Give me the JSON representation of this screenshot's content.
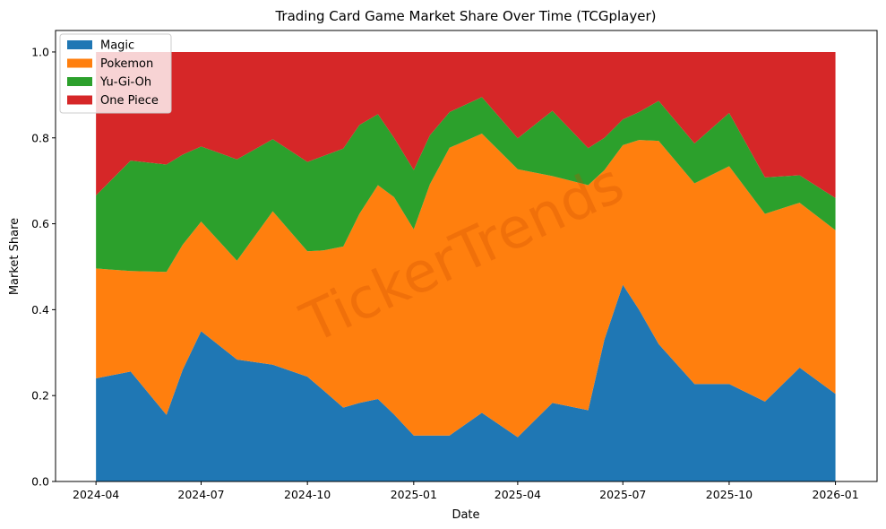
{
  "chart_data": {
    "type": "area",
    "stacked": true,
    "title": "Trading Card Game Market Share Over Time (TCGplayer)",
    "xlabel": "Date",
    "ylabel": "Market Share",
    "ylim": [
      0,
      1.05
    ],
    "xlim": [
      "2024-02-26",
      "2026-02-06"
    ],
    "yticks": [
      0.0,
      0.2,
      0.4,
      0.6,
      0.8,
      1.0
    ],
    "ytick_labels": [
      "0.0",
      "0.2",
      "0.4",
      "0.6",
      "0.8",
      "1.0"
    ],
    "xticks": [
      "2024-04-01",
      "2024-07-01",
      "2024-10-01",
      "2025-01-01",
      "2025-04-01",
      "2025-07-01",
      "2025-10-01",
      "2026-01-01"
    ],
    "xtick_labels": [
      "2024-04",
      "2024-07",
      "2024-10",
      "2025-01",
      "2025-04",
      "2025-07",
      "2025-10",
      "2026-01"
    ],
    "grid": false,
    "legend_position": "top-left",
    "watermark": "TickerTrends",
    "x": [
      "2024-04-01",
      "2024-05-01",
      "2024-06-01",
      "2024-06-15",
      "2024-07-01",
      "2024-08-01",
      "2024-09-01",
      "2024-10-01",
      "2024-10-15",
      "2024-11-01",
      "2024-11-15",
      "2024-12-01",
      "2024-12-15",
      "2025-01-01",
      "2025-01-15",
      "2025-02-01",
      "2025-03-01",
      "2025-04-01",
      "2025-05-01",
      "2025-06-01",
      "2025-06-15",
      "2025-07-01",
      "2025-07-15",
      "2025-08-01",
      "2025-09-01",
      "2025-10-01",
      "2025-11-01",
      "2025-12-01",
      "2026-01-01"
    ],
    "series": [
      {
        "name": "Magic",
        "color": "#1f77b4",
        "values": [
          0.24,
          0.256,
          0.155,
          0.26,
          0.35,
          0.284,
          0.272,
          0.244,
          0.212,
          0.172,
          0.183,
          0.192,
          0.156,
          0.107,
          0.107,
          0.107,
          0.16,
          0.103,
          0.183,
          0.166,
          0.33,
          0.458,
          0.4,
          0.32,
          0.227,
          0.227,
          0.186,
          0.265,
          0.204
        ]
      },
      {
        "name": "Pokemon",
        "color": "#ff7f0e",
        "values": [
          0.256,
          0.234,
          0.333,
          0.291,
          0.255,
          0.23,
          0.357,
          0.292,
          0.326,
          0.375,
          0.44,
          0.498,
          0.506,
          0.48,
          0.585,
          0.67,
          0.65,
          0.624,
          0.528,
          0.524,
          0.395,
          0.325,
          0.395,
          0.473,
          0.467,
          0.507,
          0.437,
          0.384,
          0.381
        ]
      },
      {
        "name": "Yu-Gi-Oh",
        "color": "#2ca02c",
        "values": [
          0.17,
          0.257,
          0.25,
          0.21,
          0.175,
          0.236,
          0.168,
          0.208,
          0.22,
          0.228,
          0.207,
          0.165,
          0.138,
          0.138,
          0.114,
          0.083,
          0.085,
          0.072,
          0.152,
          0.086,
          0.075,
          0.06,
          0.065,
          0.093,
          0.093,
          0.124,
          0.085,
          0.064,
          0.075
        ]
      },
      {
        "name": "One Piece",
        "color": "#d62728",
        "values": [
          0.334,
          0.253,
          0.262,
          0.239,
          0.22,
          0.25,
          0.203,
          0.256,
          0.242,
          0.225,
          0.17,
          0.145,
          0.2,
          0.275,
          0.194,
          0.14,
          0.105,
          0.201,
          0.137,
          0.224,
          0.2,
          0.157,
          0.14,
          0.114,
          0.213,
          0.142,
          0.292,
          0.287,
          0.34
        ]
      }
    ]
  }
}
